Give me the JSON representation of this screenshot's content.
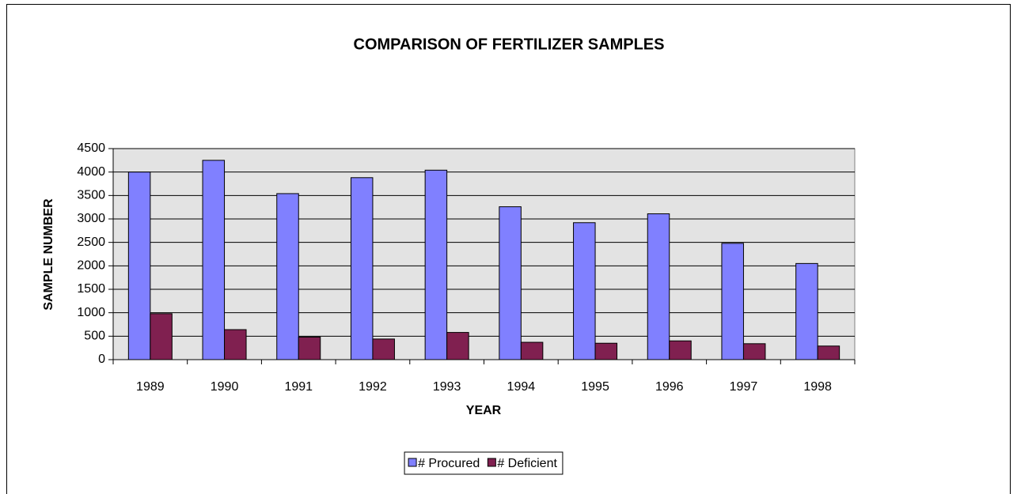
{
  "chart_data": {
    "type": "bar",
    "title": "COMPARISON OF FERTILIZER SAMPLES",
    "x_label": "YEAR",
    "y_label": "SAMPLE NUMBER",
    "categories": [
      "1989",
      "1990",
      "1991",
      "1992",
      "1993",
      "1994",
      "1995",
      "1996",
      "1997",
      "1998"
    ],
    "series": [
      {
        "name": "# Procured",
        "color": "#8080ff",
        "values": [
          4000,
          4250,
          3540,
          3880,
          4040,
          3260,
          2920,
          3110,
          2480,
          2050
        ]
      },
      {
        "name": "# Deficient",
        "color": "#802050",
        "values": [
          980,
          640,
          480,
          440,
          580,
          370,
          350,
          400,
          340,
          290
        ]
      }
    ],
    "ylim": [
      0,
      4500
    ],
    "yticks": [
      0,
      500,
      1000,
      1500,
      2000,
      2500,
      3000,
      3500,
      4000,
      4500
    ],
    "grid": true,
    "legend": "bottom"
  }
}
